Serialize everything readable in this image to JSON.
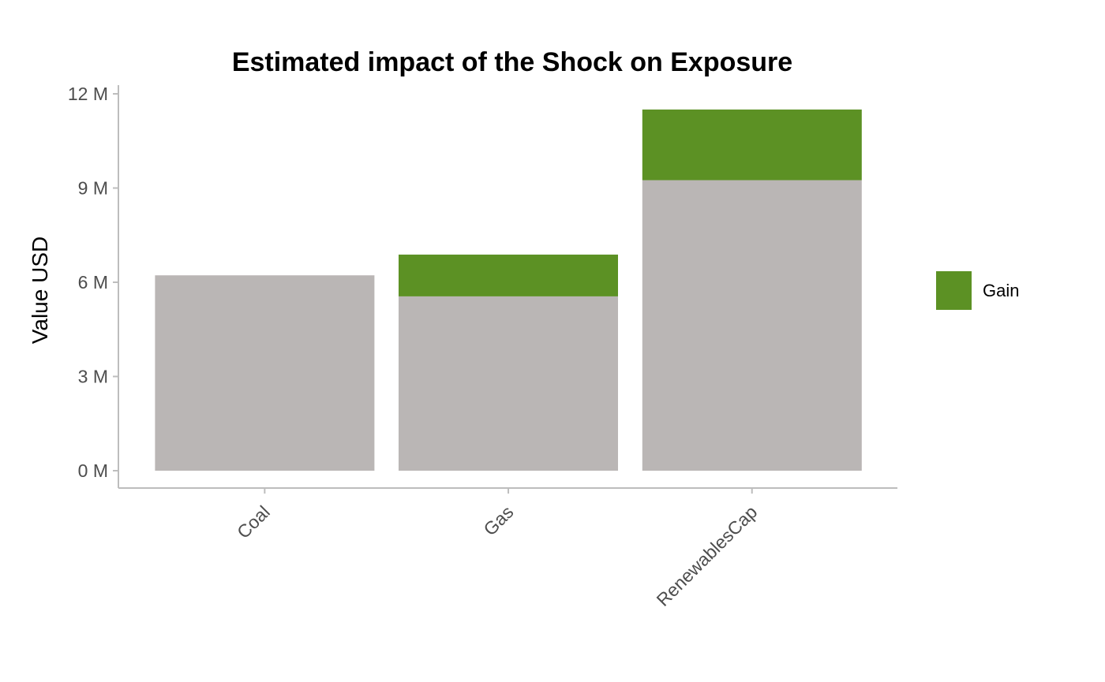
{
  "chart_data": {
    "type": "bar",
    "stacked": true,
    "title": "Estimated impact of the Shock on Exposure",
    "xlabel": "",
    "ylabel": "Value USD",
    "ylim": [
      0,
      12000000
    ],
    "yticks": [
      {
        "value": 0,
        "label": "0 M"
      },
      {
        "value": 3000000,
        "label": "3 M"
      },
      {
        "value": 6000000,
        "label": "6 M"
      },
      {
        "value": 9000000,
        "label": "9 M"
      },
      {
        "value": 12000000,
        "label": "12 M"
      }
    ],
    "categories": [
      "Coal",
      "Gas",
      "RenewablesCap"
    ],
    "series": [
      {
        "name": "",
        "color": "#bab6b5",
        "values": [
          6220000,
          5550000,
          9250000
        ],
        "in_legend": false
      },
      {
        "name": "Gain",
        "color": "#5c9124",
        "values": [
          0,
          1330000,
          2250000
        ],
        "in_legend": true
      }
    ],
    "legend_position": "right",
    "grid": false
  }
}
